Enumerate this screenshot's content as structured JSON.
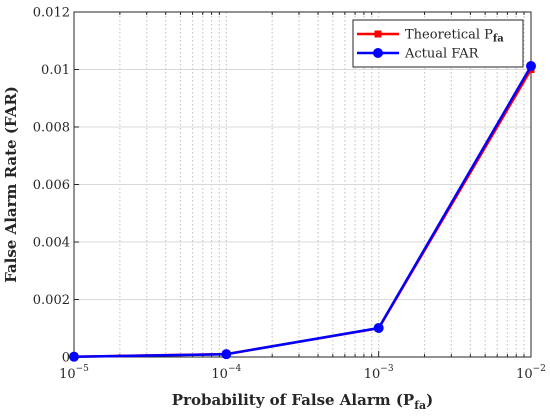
{
  "chart_data": {
    "type": "line",
    "title": "",
    "xlabel": {
      "main": "Probability of False Alarm (P",
      "sub": "fa",
      "end": ")"
    },
    "ylabel": "False Alarm Rate (FAR)",
    "xscale": "log",
    "xlim": [
      1e-05,
      0.01
    ],
    "ylim": [
      0,
      0.012
    ],
    "grid": true,
    "legend_position": "top-right",
    "x_ticks": [
      {
        "value": 1e-05,
        "base": "10",
        "exp": "−5"
      },
      {
        "value": 0.0001,
        "base": "10",
        "exp": "−4"
      },
      {
        "value": 0.001,
        "base": "10",
        "exp": "−3"
      },
      {
        "value": 0.01,
        "base": "10",
        "exp": "−2"
      }
    ],
    "y_ticks": [
      {
        "value": 0,
        "label": "0"
      },
      {
        "value": 0.002,
        "label": "0.002"
      },
      {
        "value": 0.004,
        "label": "0.004"
      },
      {
        "value": 0.006,
        "label": "0.006"
      },
      {
        "value": 0.008,
        "label": "0.008"
      },
      {
        "value": 0.01,
        "label": "0.01"
      },
      {
        "value": 0.012,
        "label": "0.012"
      }
    ],
    "series": [
      {
        "name": "Theoretical P",
        "name_sub": "fa",
        "color": "#ff0000",
        "marker": "square",
        "x": [
          1e-05,
          0.0001,
          0.001,
          0.01
        ],
        "y": [
          1e-05,
          0.0001,
          0.001,
          0.01
        ]
      },
      {
        "name": "Actual FAR",
        "name_sub": "",
        "color": "#0000ff",
        "marker": "circle",
        "x": [
          1e-05,
          0.0001,
          0.001,
          0.01
        ],
        "y": [
          1.2e-05,
          9.8e-05,
          0.00101,
          0.01012
        ]
      }
    ]
  }
}
